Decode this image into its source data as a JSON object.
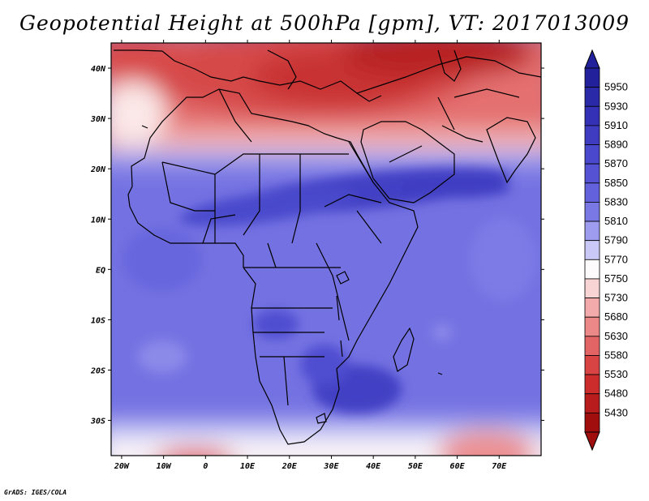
{
  "title": "Geopotential Height at 500hPa [gpm], VT: 2017013009",
  "map": {
    "lat_ticks": [
      "40N",
      "30N",
      "20N",
      "10N",
      "EQ",
      "10S",
      "20S",
      "30S"
    ],
    "lon_ticks": [
      "20W",
      "10W",
      "0",
      "10E",
      "20E",
      "30E",
      "40E",
      "50E",
      "60E",
      "70E"
    ],
    "lat_range": [
      -37,
      45
    ],
    "lon_range": [
      -22.5,
      80
    ]
  },
  "colorbar": {
    "levels": [
      "5950",
      "5930",
      "5910",
      "5890",
      "5870",
      "5850",
      "5830",
      "5810",
      "5790",
      "5770",
      "5750",
      "5730",
      "5680",
      "5630",
      "5580",
      "5530",
      "5480",
      "5430"
    ],
    "colors": [
      "#22209a",
      "#2a2aa8",
      "#3531b6",
      "#3f3cc2",
      "#4a48cc",
      "#5553d4",
      "#6361dc",
      "#7a78e4",
      "#9d9cee",
      "#c9c8f6",
      "#fdfbfb",
      "#f9d4d4",
      "#f3aaaa",
      "#ec8888",
      "#e26464",
      "#d84444",
      "#cc2c2c",
      "#b81c1c",
      "#a00e0e"
    ]
  },
  "credit": "GrADS: IGES/COLA"
}
